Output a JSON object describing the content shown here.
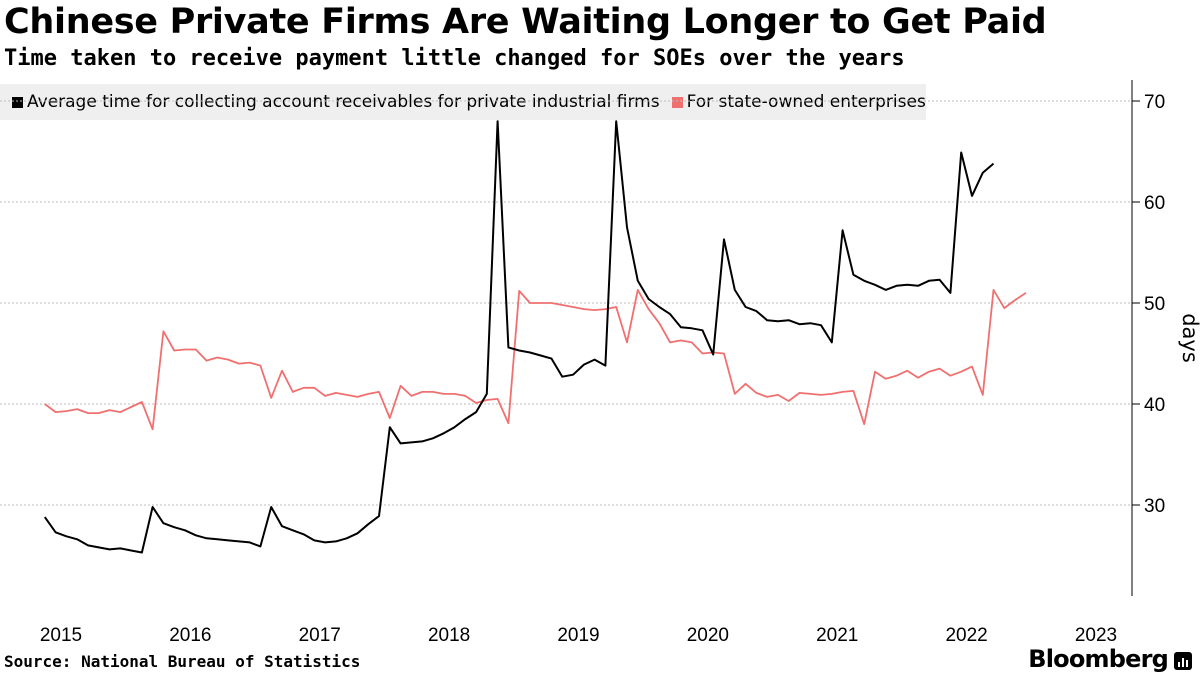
{
  "header": {
    "title": "Chinese Private Firms Are Waiting Longer to Get Paid",
    "subtitle": "Time taken to receive payment little changed for SOEs over the years"
  },
  "footer": {
    "source": "Source: National Bureau of Statistics",
    "brand": "Bloomberg"
  },
  "colors": {
    "private": "#000000",
    "soe": "#f07070",
    "grid": "#bdbdbd",
    "legend_bg": "#efefef"
  },
  "chart_data": {
    "type": "line",
    "title": "Chinese Private Firms Are Waiting Longer to Get Paid",
    "ylabel": "days",
    "xlabel": "",
    "ylim": [
      20.5,
      72
    ],
    "yticks": [
      30,
      40,
      50,
      60,
      70
    ],
    "grid": true,
    "legend_position": "top-left",
    "x_start": 2014.875,
    "x_step": 0.08333,
    "x_range": [
      2014.875,
      2023.35
    ],
    "xtick_positions": [
      2015.0,
      2016.0,
      2017.0,
      2018.0,
      2019.0,
      2020.0,
      2021.0,
      2022.0,
      2023.0
    ],
    "xtick_labels": [
      "2015",
      "2016",
      "2017",
      "2018",
      "2019",
      "2020",
      "2021",
      "2022",
      "2023"
    ],
    "series": [
      {
        "name": "Average time for collecting account receivables for private industrial firms",
        "color": "#000000",
        "values": [
          28.8,
          27.3,
          26.9,
          26.6,
          26.0,
          25.8,
          25.6,
          25.7,
          25.5,
          25.3,
          29.8,
          28.2,
          27.8,
          27.5,
          27.0,
          26.7,
          26.6,
          26.5,
          26.4,
          26.3,
          25.9,
          29.8,
          27.9,
          27.5,
          27.1,
          26.5,
          26.3,
          26.4,
          26.7,
          27.2,
          28.1,
          28.9,
          37.7,
          36.1,
          36.2,
          36.3,
          36.6,
          37.1,
          37.7,
          38.5,
          39.2,
          41.0,
          68.0,
          45.6,
          45.3,
          45.1,
          44.8,
          44.5,
          42.7,
          42.9,
          43.9,
          44.4,
          43.8,
          68.0,
          57.5,
          52.2,
          50.4,
          49.6,
          48.9,
          47.6,
          47.5,
          47.3,
          44.9,
          56.3,
          51.3,
          49.6,
          49.2,
          48.3,
          48.2,
          48.3,
          47.9,
          48.0,
          47.8,
          46.1,
          57.2,
          52.8,
          52.2,
          51.8,
          51.3,
          51.7,
          51.8,
          51.7,
          52.2,
          52.3,
          51.0,
          64.9,
          60.6,
          62.9,
          63.8
        ]
      },
      {
        "name": "For state-owned enterprises",
        "color": "#f07070",
        "values": [
          40.0,
          39.2,
          39.3,
          39.5,
          39.1,
          39.1,
          39.4,
          39.2,
          39.7,
          40.2,
          37.5,
          47.2,
          45.3,
          45.4,
          45.4,
          44.3,
          44.6,
          44.4,
          44.0,
          44.1,
          43.8,
          40.6,
          43.3,
          41.2,
          41.6,
          41.6,
          40.8,
          41.1,
          40.9,
          40.7,
          41.0,
          41.2,
          38.6,
          41.8,
          40.8,
          41.2,
          41.2,
          41.0,
          41.0,
          40.8,
          40.1,
          40.4,
          40.5,
          38.1,
          51.2,
          50.0,
          50.0,
          50.0,
          49.8,
          49.6,
          49.4,
          49.3,
          49.4,
          49.6,
          46.1,
          51.3,
          49.4,
          48.0,
          46.1,
          46.3,
          46.1,
          45.0,
          45.1,
          45.0,
          41.0,
          42.0,
          41.1,
          40.7,
          40.9,
          40.3,
          41.1,
          41.0,
          40.9,
          41.0,
          41.2,
          41.3,
          38.0,
          43.2,
          42.5,
          42.8,
          43.3,
          42.6,
          43.2,
          43.5,
          42.8,
          43.2,
          43.7,
          40.9,
          51.3,
          49.5,
          50.3,
          51.0
        ]
      }
    ]
  }
}
